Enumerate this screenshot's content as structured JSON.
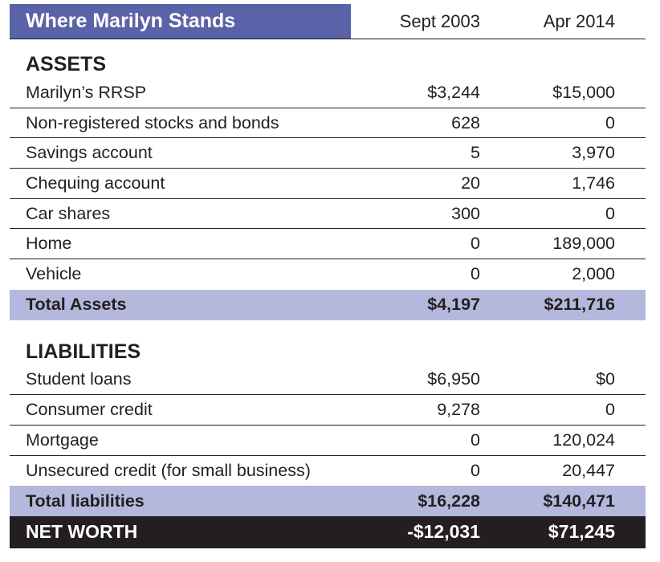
{
  "header": {
    "title": "Where Marilyn Stands",
    "col_a": "Sept 2003",
    "col_b": "Apr 2014"
  },
  "assets": {
    "title": "ASSETS",
    "rows": [
      {
        "label": "Marilyn’s RRSP",
        "a": "$3,244",
        "b": "$15,000"
      },
      {
        "label": "Non-registered stocks and bonds",
        "a": "628",
        "b": "0"
      },
      {
        "label": "Savings account",
        "a": "5",
        "b": "3,970"
      },
      {
        "label": "Chequing account",
        "a": "20",
        "b": "1,746"
      },
      {
        "label": "Car shares",
        "a": "300",
        "b": "0"
      },
      {
        "label": "Home",
        "a": "0",
        "b": "189,000"
      },
      {
        "label": "Vehicle",
        "a": "0",
        "b": "2,000"
      }
    ],
    "total": {
      "label": "Total Assets",
      "a": "$4,197",
      "b": "$211,716"
    }
  },
  "liabilities": {
    "title": "LIABILITIES",
    "rows": [
      {
        "label": "Student loans",
        "a": "$6,950",
        "b": "$0"
      },
      {
        "label": "Consumer credit",
        "a": "9,278",
        "b": "0"
      },
      {
        "label": "Mortgage",
        "a": "0",
        "b": "120,024"
      },
      {
        "label": "Unsecured credit (for small business)",
        "a": "0",
        "b": "20,447"
      }
    ],
    "total": {
      "label": "Total liabilities",
      "a": "$16,228",
      "b": "$140,471"
    }
  },
  "net_worth": {
    "label": "NET WORTH",
    "a": "-$12,031",
    "b": "$71,245"
  },
  "colors": {
    "header_bg": "#5b63a8",
    "total_bg": "#b3b8dc",
    "net_bg": "#231f20"
  }
}
